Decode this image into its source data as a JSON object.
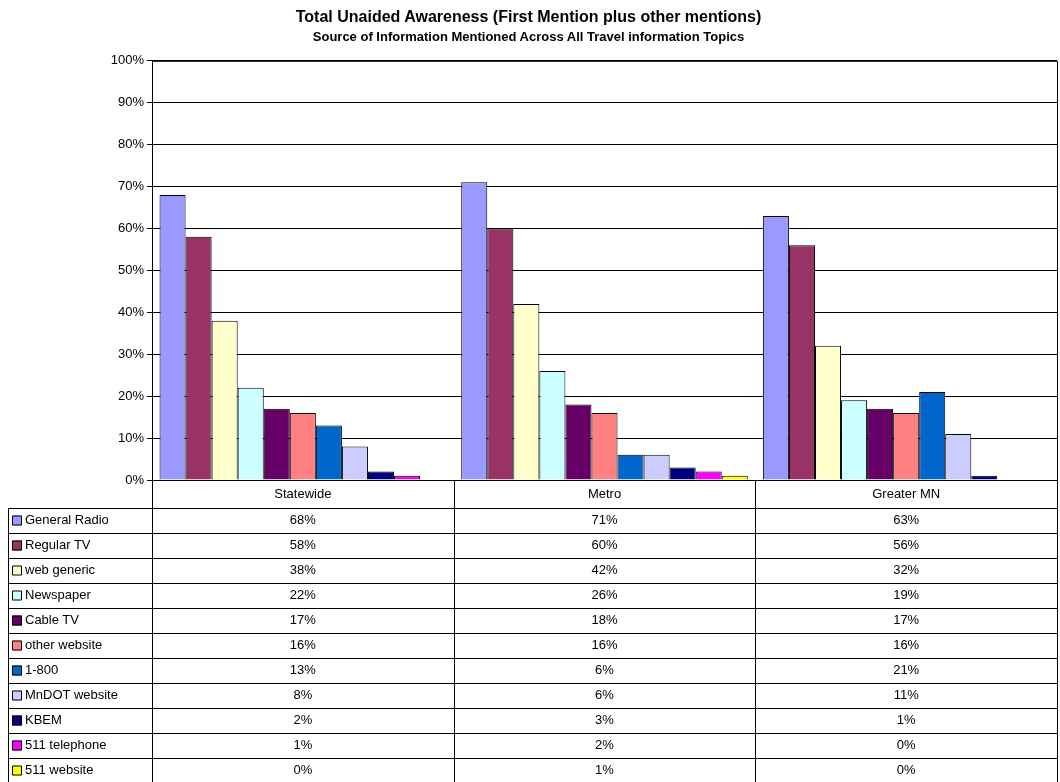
{
  "chart_data": {
    "type": "bar",
    "title": "Total Unaided Awareness (First Mention plus other mentions)",
    "subtitle": "Source of Information Mentioned Across All Travel information Topics",
    "categories": [
      "Statewide",
      "Metro",
      "Greater MN"
    ],
    "series": [
      {
        "name": "General Radio",
        "color": "#9999ff",
        "values": [
          68,
          71,
          63
        ],
        "value_labels": [
          "68%",
          "71%",
          "63%"
        ]
      },
      {
        "name": "Regular TV",
        "color": "#993366",
        "values": [
          58,
          60,
          56
        ],
        "value_labels": [
          "58%",
          "60%",
          "56%"
        ]
      },
      {
        "name": "web generic",
        "color": "#ffffcc",
        "values": [
          38,
          42,
          32
        ],
        "value_labels": [
          "38%",
          "42%",
          "32%"
        ]
      },
      {
        "name": "Newspaper",
        "color": "#ccffff",
        "values": [
          22,
          26,
          19
        ],
        "value_labels": [
          "22%",
          "26%",
          "19%"
        ]
      },
      {
        "name": "Cable TV",
        "color": "#660066",
        "values": [
          17,
          18,
          17
        ],
        "value_labels": [
          "17%",
          "18%",
          "17%"
        ]
      },
      {
        "name": "other website",
        "color": "#ff8080",
        "values": [
          16,
          16,
          16
        ],
        "value_labels": [
          "16%",
          "16%",
          "16%"
        ]
      },
      {
        "name": "1-800",
        "color": "#0066cc",
        "values": [
          13,
          6,
          21
        ],
        "value_labels": [
          "13%",
          "6%",
          "21%"
        ]
      },
      {
        "name": "MnDOT website",
        "color": "#ccccff",
        "values": [
          8,
          6,
          11
        ],
        "value_labels": [
          "8%",
          "6%",
          "11%"
        ]
      },
      {
        "name": "KBEM",
        "color": "#000080",
        "values": [
          2,
          3,
          1
        ],
        "value_labels": [
          "2%",
          "3%",
          "1%"
        ]
      },
      {
        "name": "511 telephone",
        "color": "#ff00ff",
        "values": [
          1,
          2,
          0
        ],
        "value_labels": [
          "1%",
          "2%",
          "0%"
        ]
      },
      {
        "name": "511 website",
        "color": "#ffff00",
        "values": [
          0,
          1,
          0
        ],
        "value_labels": [
          "0%",
          "1%",
          "0%"
        ]
      }
    ],
    "ylim": [
      0,
      100
    ],
    "yticks": [
      {
        "value": 0,
        "label": "0%"
      },
      {
        "value": 10,
        "label": "10%"
      },
      {
        "value": 20,
        "label": "20%"
      },
      {
        "value": 30,
        "label": "30%"
      },
      {
        "value": 40,
        "label": "40%"
      },
      {
        "value": 50,
        "label": "50%"
      },
      {
        "value": 60,
        "label": "60%"
      },
      {
        "value": 70,
        "label": "70%"
      },
      {
        "value": 80,
        "label": "80%"
      },
      {
        "value": 90,
        "label": "90%"
      },
      {
        "value": 100,
        "label": "100%"
      }
    ],
    "grid": "y",
    "legend": "bottom"
  }
}
